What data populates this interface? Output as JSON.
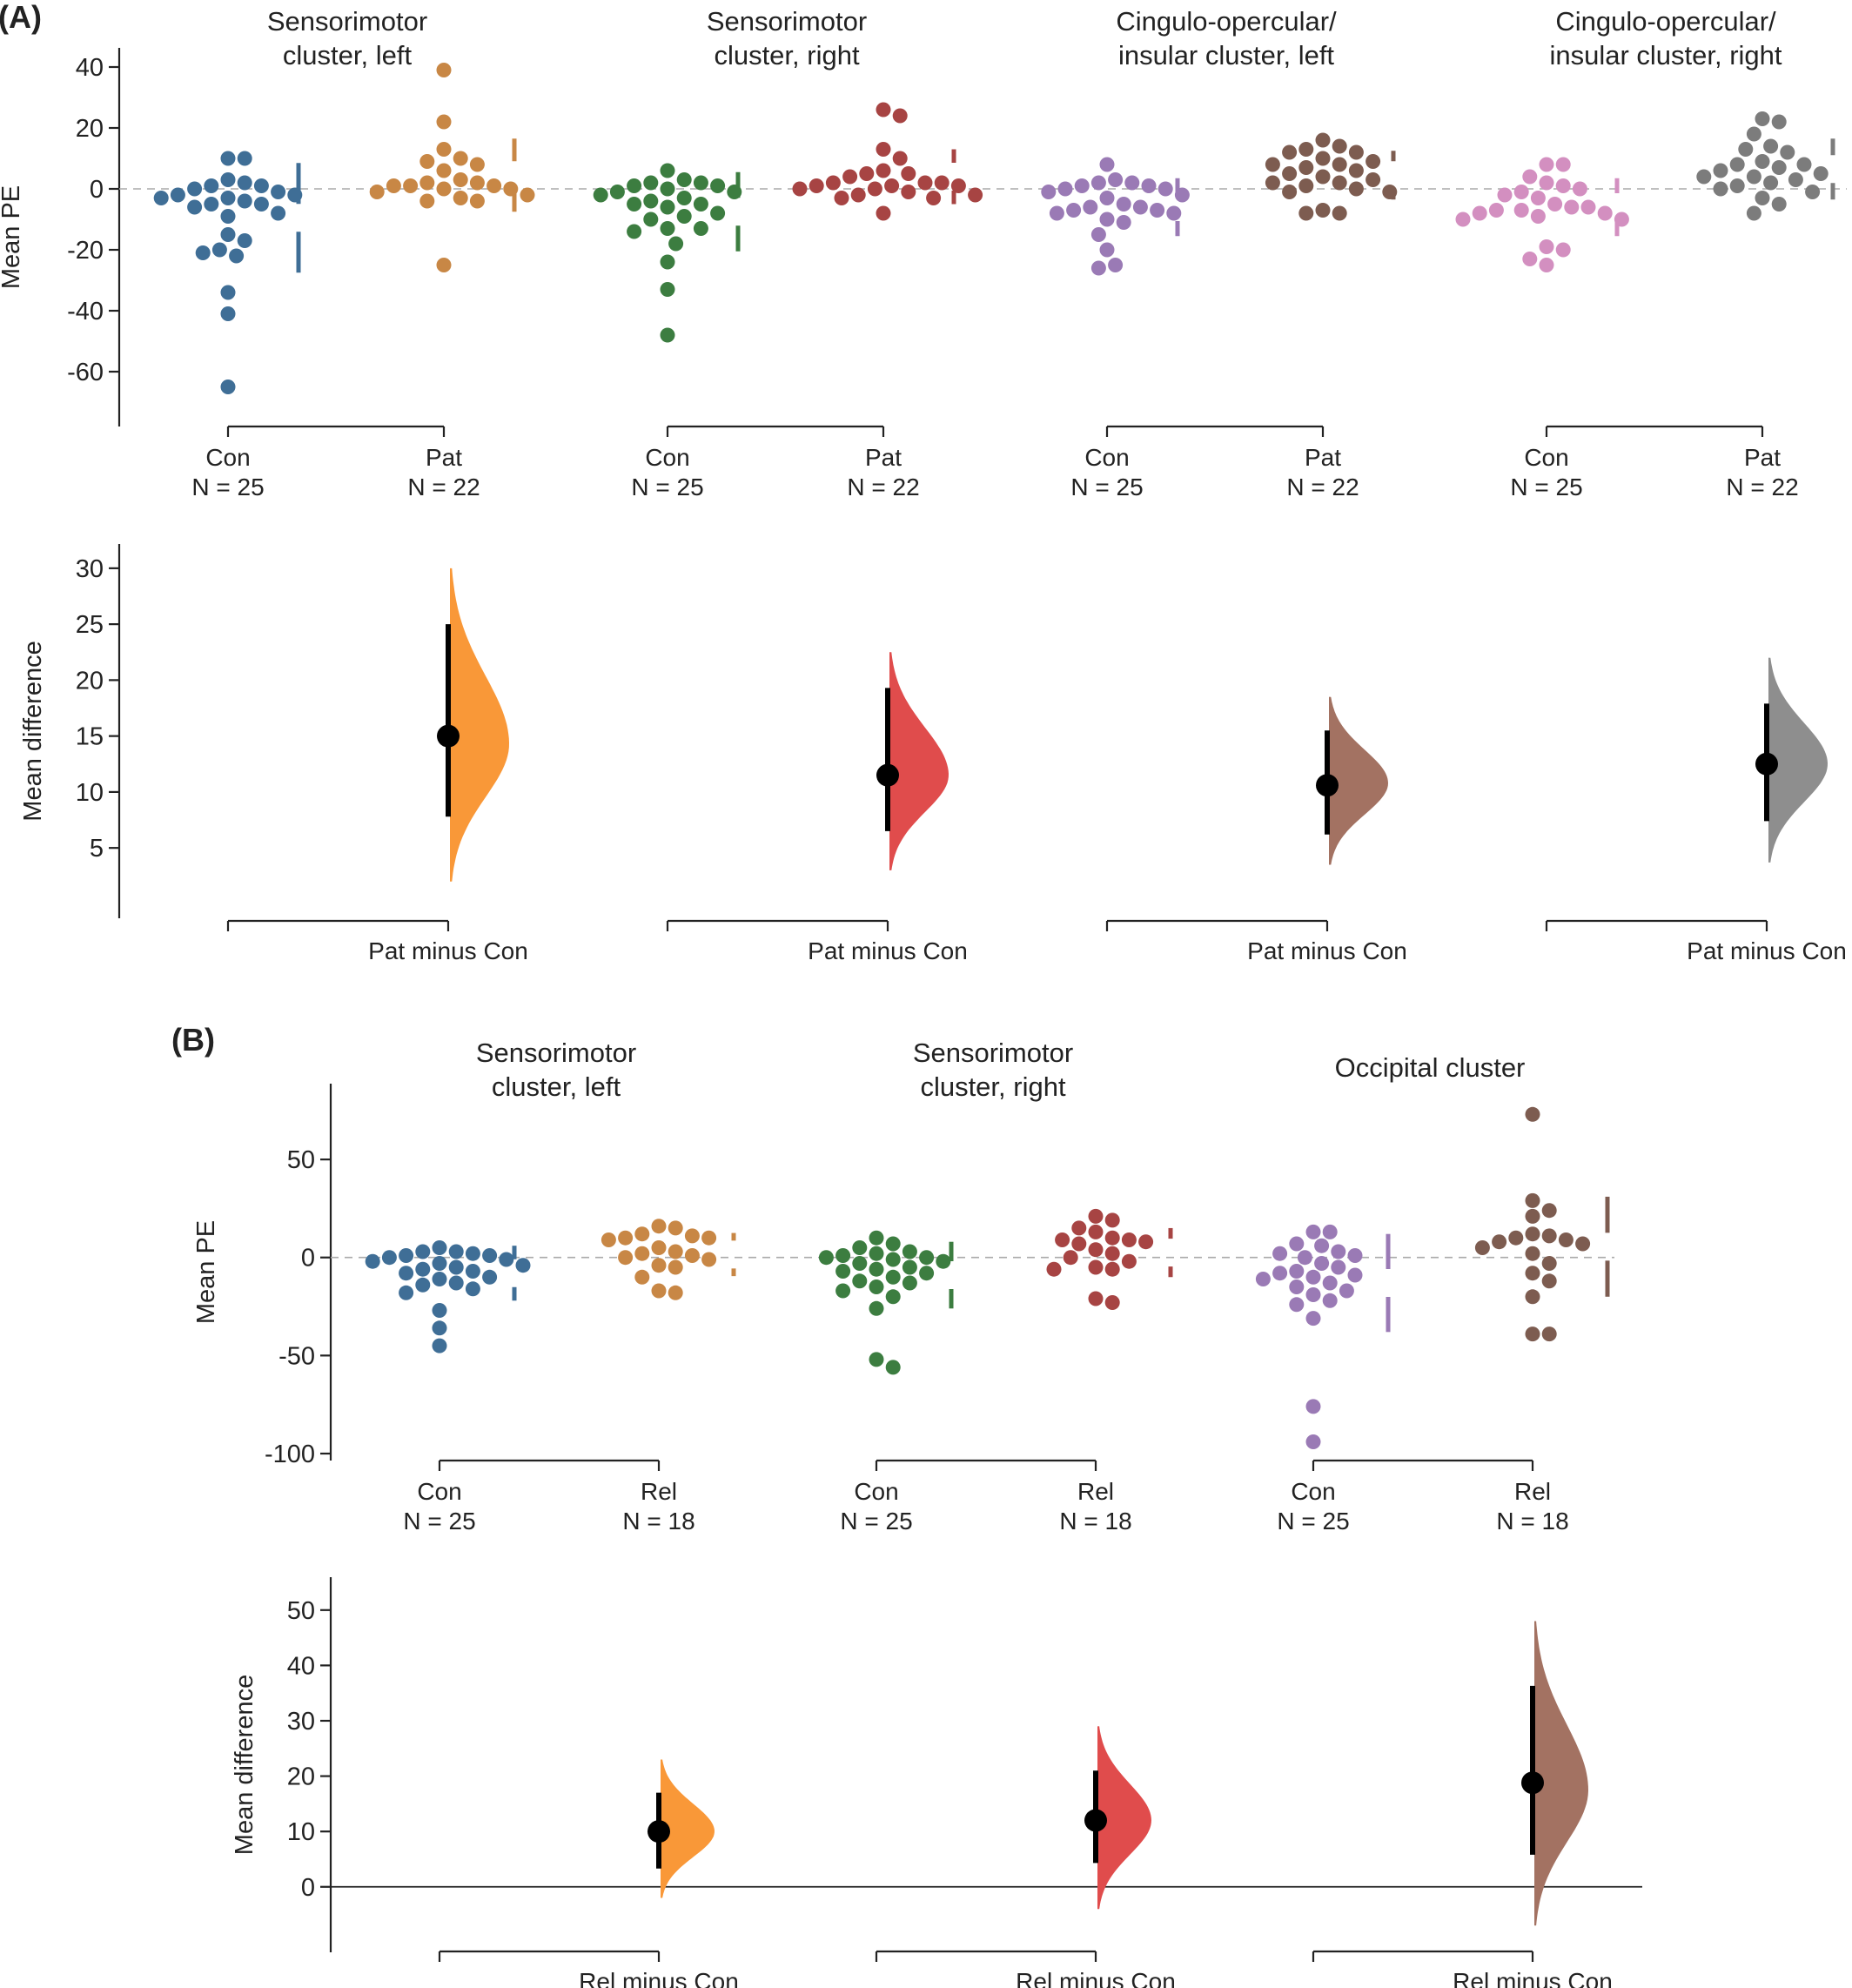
{
  "figure": {
    "panels": [
      {
        "letter": "(A)",
        "outcome_group_labels": [
          "Con",
          "Pat"
        ],
        "outcome_group_counts": [
          "N = 25",
          "N = 22"
        ],
        "difference_label": "Pat minus Con",
        "subplots": [
          {
            "title_lines": [
              "Sensorimotor",
              "cluster, left"
            ]
          },
          {
            "title_lines": [
              "Sensorimotor",
              "cluster, right"
            ]
          },
          {
            "title_lines": [
              "Cingulo-opercular/",
              "insular cluster, left"
            ]
          },
          {
            "title_lines": [
              "Cingulo-opercular/",
              "insular cluster, right"
            ]
          }
        ]
      },
      {
        "letter": "(B)",
        "outcome_group_labels": [
          "Con",
          "Rel"
        ],
        "outcome_group_counts": [
          "N = 25",
          "N = 18"
        ],
        "difference_label": "Rel minus Con",
        "subplots": [
          {
            "title_lines": [
              "Sensorimotor",
              "cluster, left"
            ]
          },
          {
            "title_lines": [
              "Sensorimotor",
              "cluster, right"
            ]
          },
          {
            "title_lines": [
              "Occipital cluster"
            ]
          }
        ]
      }
    ]
  },
  "chart_data": [
    {
      "type": "scatter",
      "panel": "(A)",
      "role": "swarm",
      "ylabel": "Mean PE",
      "ylim": [
        -70,
        42
      ],
      "yticks": [
        40,
        20,
        0,
        -20,
        -40,
        -60
      ],
      "reference_line": 0,
      "groups": [
        {
          "cluster": "Sensorimotor cluster, left",
          "label": "Con",
          "n": "N = 25",
          "color": "#3f6e96",
          "values": [
            10,
            10,
            3,
            2,
            1,
            1,
            0,
            -1,
            -2,
            -2,
            -3,
            -3,
            -4,
            -5,
            -5,
            -6,
            -8,
            -9,
            -15,
            -17,
            -20,
            -21,
            -22,
            -34,
            -41,
            -65
          ],
          "summary": {
            "mean": -9.5,
            "sd": 18
          }
        },
        {
          "cluster": "Sensorimotor cluster, left",
          "label": "Pat",
          "n": "N = 22",
          "color": "#c88745",
          "values": [
            39,
            22,
            13,
            10,
            9,
            8,
            6,
            3,
            2,
            2,
            1,
            1,
            1,
            0,
            0,
            -1,
            -2,
            -3,
            -4,
            -4,
            -25
          ],
          "summary": {
            "mean": 4.5,
            "sd": 12
          }
        },
        {
          "cluster": "Sensorimotor cluster, right",
          "label": "Con",
          "n": "N = 25",
          "color": "#3c7d40",
          "values": [
            6,
            3,
            2,
            2,
            1,
            1,
            0,
            -1,
            -1,
            -2,
            -3,
            -4,
            -5,
            -5,
            -6,
            -8,
            -9,
            -10,
            -13,
            -13,
            -14,
            -18,
            -24,
            -33,
            -48
          ],
          "summary": {
            "mean": -7.5,
            "sd": 13
          }
        },
        {
          "cluster": "Sensorimotor cluster, right",
          "label": "Pat",
          "n": "N = 22",
          "color": "#a74443",
          "values": [
            26,
            24,
            13,
            10,
            6,
            5,
            5,
            4,
            2,
            2,
            2,
            1,
            1,
            1,
            0,
            0,
            -1,
            -2,
            -2,
            -3,
            -3,
            -8
          ],
          "summary": {
            "mean": 4,
            "sd": 9
          }
        },
        {
          "cluster": "Cingulo-opercular/insular cluster, left",
          "label": "Con",
          "n": "N = 25",
          "color": "#9a7ab5",
          "values": [
            8,
            3,
            2,
            2,
            1,
            1,
            0,
            0,
            -1,
            -2,
            -3,
            -5,
            -6,
            -6,
            -7,
            -7,
            -8,
            -8,
            -10,
            -11,
            -15,
            -20,
            -25,
            -26
          ],
          "summary": {
            "mean": -6,
            "sd": 9.5
          }
        },
        {
          "cluster": "Cingulo-opercular/insular cluster, left",
          "label": "Pat",
          "n": "N = 22",
          "color": "#7d5c50",
          "values": [
            16,
            14,
            13,
            12,
            12,
            10,
            9,
            8,
            8,
            7,
            6,
            5,
            4,
            3,
            2,
            2,
            1,
            0,
            -1,
            -1,
            -7,
            -8,
            -8
          ],
          "summary": {
            "mean": 4.5,
            "sd": 8
          }
        },
        {
          "cluster": "Cingulo-opercular/insular cluster, right",
          "label": "Con",
          "n": "N = 25",
          "color": "#d38fc0",
          "values": [
            8,
            8,
            4,
            2,
            1,
            0,
            -1,
            -2,
            -3,
            -5,
            -6,
            -6,
            -7,
            -7,
            -8,
            -8,
            -9,
            -10,
            -10,
            -19,
            -20,
            -23,
            -25
          ],
          "summary": {
            "mean": -6,
            "sd": 9.5
          }
        },
        {
          "cluster": "Cingulo-opercular/insular cluster, right",
          "label": "Pat",
          "n": "N = 22",
          "color": "#7c7c7c",
          "values": [
            23,
            22,
            18,
            14,
            13,
            12,
            9,
            8,
            8,
            7,
            6,
            5,
            4,
            4,
            3,
            2,
            1,
            0,
            -1,
            -3,
            -5,
            -8
          ],
          "summary": {
            "mean": 6.5,
            "sd": 10
          }
        }
      ]
    },
    {
      "type": "scatter",
      "panel": "(A)",
      "role": "estimation",
      "ylabel": "Mean difference",
      "ylim": [
        -3,
        31
      ],
      "yticks": [
        30,
        25,
        20,
        15,
        10,
        5
      ],
      "comparisons": [
        {
          "cluster": "Sensorimotor cluster, left",
          "label": "Pat minus Con",
          "color": "#f99838",
          "mean_difference": 15,
          "ci": [
            7.8,
            25
          ],
          "dist_mode": 14.3,
          "dist_range": [
            2,
            30
          ]
        },
        {
          "cluster": "Sensorimotor cluster, right",
          "label": "Pat minus Con",
          "color": "#e04c4c",
          "mean_difference": 11.5,
          "ci": [
            6.5,
            19.3
          ],
          "dist_mode": 11.5,
          "dist_range": [
            3,
            22.5
          ]
        },
        {
          "cluster": "Cingulo-opercular/insular cluster, left",
          "label": "Pat minus Con",
          "color": "#a37262",
          "mean_difference": 10.6,
          "ci": [
            6.2,
            15.5
          ],
          "dist_mode": 10.8,
          "dist_range": [
            3.5,
            18.5
          ]
        },
        {
          "cluster": "Cingulo-opercular/insular cluster, right",
          "label": "Pat minus Con",
          "color": "#8e8e8e",
          "mean_difference": 12.5,
          "ci": [
            7.4,
            17.9
          ],
          "dist_mode": 12.5,
          "dist_range": [
            3.7,
            22
          ]
        }
      ]
    },
    {
      "type": "scatter",
      "panel": "(B)",
      "role": "swarm",
      "ylabel": "Mean PE",
      "ylim": [
        -100,
        82
      ],
      "yticks": [
        50,
        0,
        -50,
        -100
      ],
      "reference_line": 0,
      "groups": [
        {
          "cluster": "Sensorimotor cluster, left",
          "label": "Con",
          "n": "N = 25",
          "color": "#3f6e96",
          "values": [
            5,
            3,
            3,
            2,
            1,
            1,
            0,
            -1,
            -2,
            -3,
            -4,
            -5,
            -6,
            -7,
            -8,
            -10,
            -11,
            -13,
            -14,
            -16,
            -18,
            -27,
            -36,
            -45
          ],
          "summary": {
            "mean": -8,
            "sd": 14
          }
        },
        {
          "cluster": "Sensorimotor cluster, left",
          "label": "Rel",
          "n": "N = 18",
          "color": "#c88745",
          "values": [
            16,
            15,
            12,
            11,
            10,
            10,
            9,
            5,
            3,
            2,
            1,
            0,
            -1,
            -4,
            -5,
            -10,
            -17,
            -18
          ],
          "summary": {
            "mean": 1.5,
            "sd": 11
          }
        },
        {
          "cluster": "Sensorimotor cluster, right",
          "label": "Con",
          "n": "N = 25",
          "color": "#3c7d40",
          "values": [
            10,
            7,
            5,
            3,
            2,
            1,
            0,
            0,
            -1,
            -2,
            -3,
            -5,
            -6,
            -7,
            -8,
            -10,
            -12,
            -13,
            -15,
            -17,
            -20,
            -26,
            -52,
            -56
          ],
          "summary": {
            "mean": -9,
            "sd": 17
          }
        },
        {
          "cluster": "Sensorimotor cluster, right",
          "label": "Rel",
          "n": "N = 18",
          "color": "#a74443",
          "values": [
            21,
            19,
            15,
            13,
            10,
            9,
            9,
            8,
            7,
            4,
            2,
            0,
            -2,
            -5,
            -6,
            -6,
            -21,
            -23
          ],
          "summary": {
            "mean": 2.5,
            "sd": 12.5
          }
        },
        {
          "cluster": "Occipital cluster",
          "label": "Con",
          "n": "N = 25",
          "color": "#9a7ab5",
          "values": [
            13,
            13,
            7,
            6,
            3,
            2,
            1,
            0,
            -3,
            -5,
            -7,
            -8,
            -9,
            -10,
            -11,
            -13,
            -15,
            -17,
            -19,
            -22,
            -24,
            -31,
            -76,
            -94
          ],
          "summary": {
            "mean": -13,
            "sd": 25
          }
        },
        {
          "cluster": "Occipital cluster",
          "label": "Rel",
          "n": "N = 18",
          "color": "#7d5c50",
          "values": [
            73,
            29,
            24,
            21,
            12,
            11,
            10,
            9,
            8,
            7,
            5,
            2,
            -3,
            -8,
            -12,
            -20,
            -39,
            -39
          ],
          "summary": {
            "mean": 5.5,
            "sd": 25.5
          }
        }
      ]
    },
    {
      "type": "scatter",
      "panel": "(B)",
      "role": "estimation",
      "ylabel": "Mean difference",
      "ylim": [
        -9,
        55
      ],
      "yticks": [
        50,
        40,
        30,
        20,
        10,
        0
      ],
      "reference_line": 0,
      "comparisons": [
        {
          "cluster": "Sensorimotor cluster, left",
          "label": "Rel minus Con",
          "color": "#f99838",
          "mean_difference": 10,
          "ci": [
            3.3,
            17
          ],
          "dist_mode": 10,
          "dist_range": [
            -2,
            23
          ]
        },
        {
          "cluster": "Sensorimotor cluster, right",
          "label": "Rel minus Con",
          "color": "#e04c4c",
          "mean_difference": 12,
          "ci": [
            4.3,
            21
          ],
          "dist_mode": 12,
          "dist_range": [
            -4,
            29
          ]
        },
        {
          "cluster": "Occipital cluster",
          "label": "Rel minus Con",
          "color": "#a37262",
          "mean_difference": 18.8,
          "ci": [
            5.8,
            36.3
          ],
          "dist_mode": 17.5,
          "dist_range": [
            -7,
            48
          ]
        }
      ]
    }
  ]
}
